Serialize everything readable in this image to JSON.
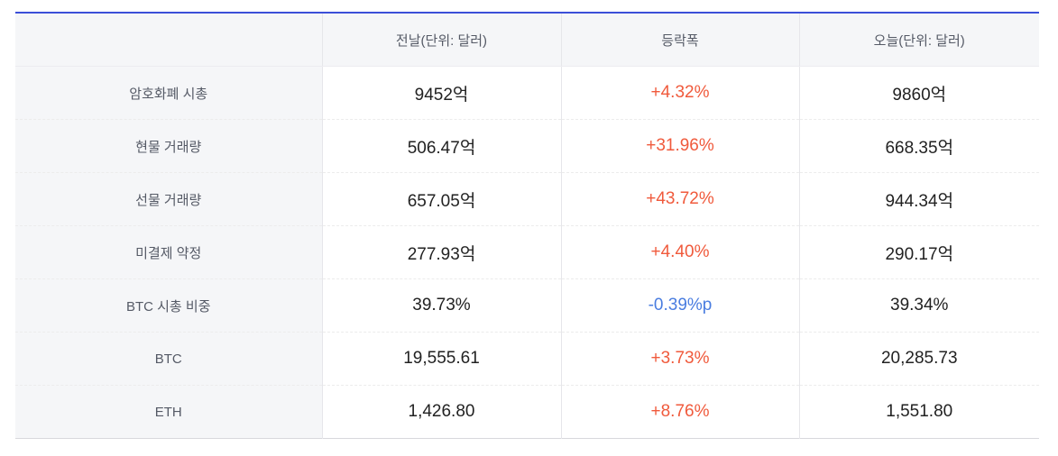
{
  "table": {
    "headers": [
      "",
      "전날(단위: 달러)",
      "등락폭",
      "오늘(단위: 달러)"
    ],
    "rows": [
      {
        "label": "암호화폐 시총",
        "prev": "9452억",
        "change": "+4.32%",
        "direction": "up",
        "today": "9860억"
      },
      {
        "label": "현물 거래량",
        "prev": "506.47억",
        "change": "+31.96%",
        "direction": "up",
        "today": "668.35억"
      },
      {
        "label": "선물 거래량",
        "prev": "657.05억",
        "change": "+43.72%",
        "direction": "up",
        "today": "944.34억"
      },
      {
        "label": "미결제 약정",
        "prev": "277.93억",
        "change": "+4.40%",
        "direction": "up",
        "today": "290.17억"
      },
      {
        "label": "BTC 시총 비중",
        "prev": "39.73%",
        "change": "-0.39%p",
        "direction": "down",
        "today": "39.34%"
      },
      {
        "label": "BTC",
        "prev": "19,555.61",
        "change": "+3.73%",
        "direction": "up",
        "today": "20,285.73"
      },
      {
        "label": "ETH",
        "prev": "1,426.80",
        "change": "+8.76%",
        "direction": "up",
        "today": "1,551.80"
      }
    ]
  },
  "colors": {
    "accent_border": "#3b4fd8",
    "up": "#f05a3c",
    "down": "#4a7de0",
    "header_bg": "#f5f6f8"
  }
}
